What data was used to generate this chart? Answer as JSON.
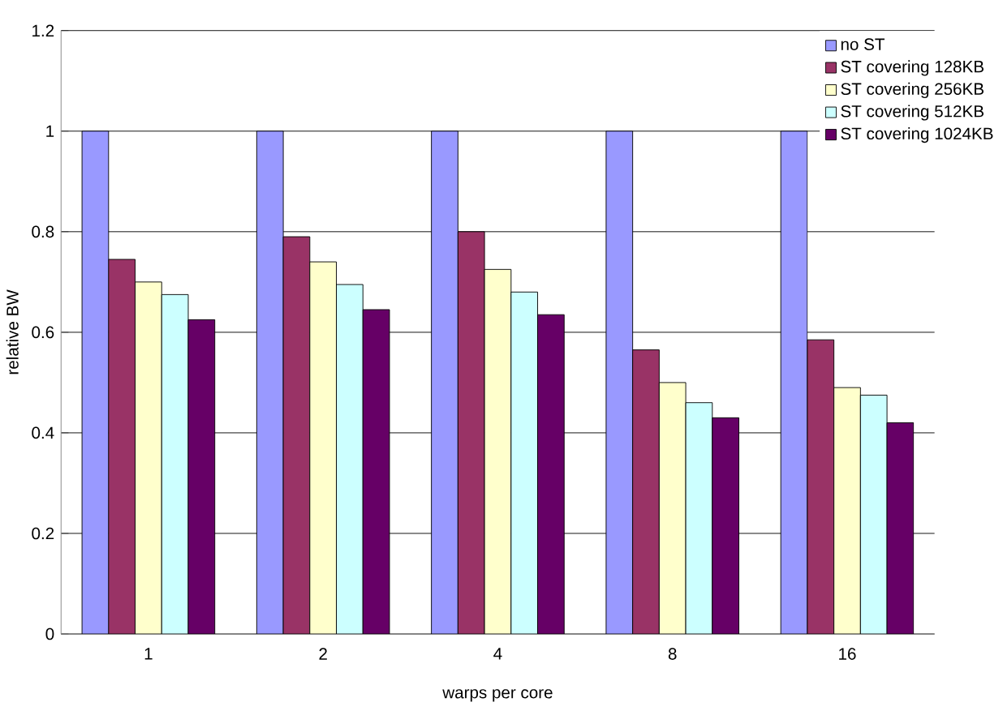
{
  "chart_data": {
    "type": "bar",
    "xlabel": "warps per core",
    "ylabel": "relative BW",
    "categories": [
      "1",
      "2",
      "4",
      "8",
      "16"
    ],
    "series": [
      {
        "name": "no ST",
        "color": "#9999ff",
        "values": [
          1,
          1,
          1,
          1,
          1
        ]
      },
      {
        "name": "ST covering 128KB",
        "color": "#993366",
        "values": [
          0.745,
          0.79,
          0.8,
          0.565,
          0.585
        ]
      },
      {
        "name": "ST covering 256KB",
        "color": "#ffffcc",
        "values": [
          0.7,
          0.74,
          0.725,
          0.5,
          0.49
        ]
      },
      {
        "name": "ST covering 512KB",
        "color": "#ccffff",
        "values": [
          0.675,
          0.695,
          0.68,
          0.46,
          0.475
        ]
      },
      {
        "name": "ST covering 1024KB",
        "color": "#660066",
        "values": [
          0.625,
          0.645,
          0.635,
          0.43,
          0.42
        ]
      }
    ],
    "ylim": [
      0,
      1.2
    ],
    "yticks": [
      0,
      0.2,
      0.4,
      0.6,
      0.8,
      1,
      1.2
    ],
    "grid": "y",
    "legend": "top right"
  }
}
